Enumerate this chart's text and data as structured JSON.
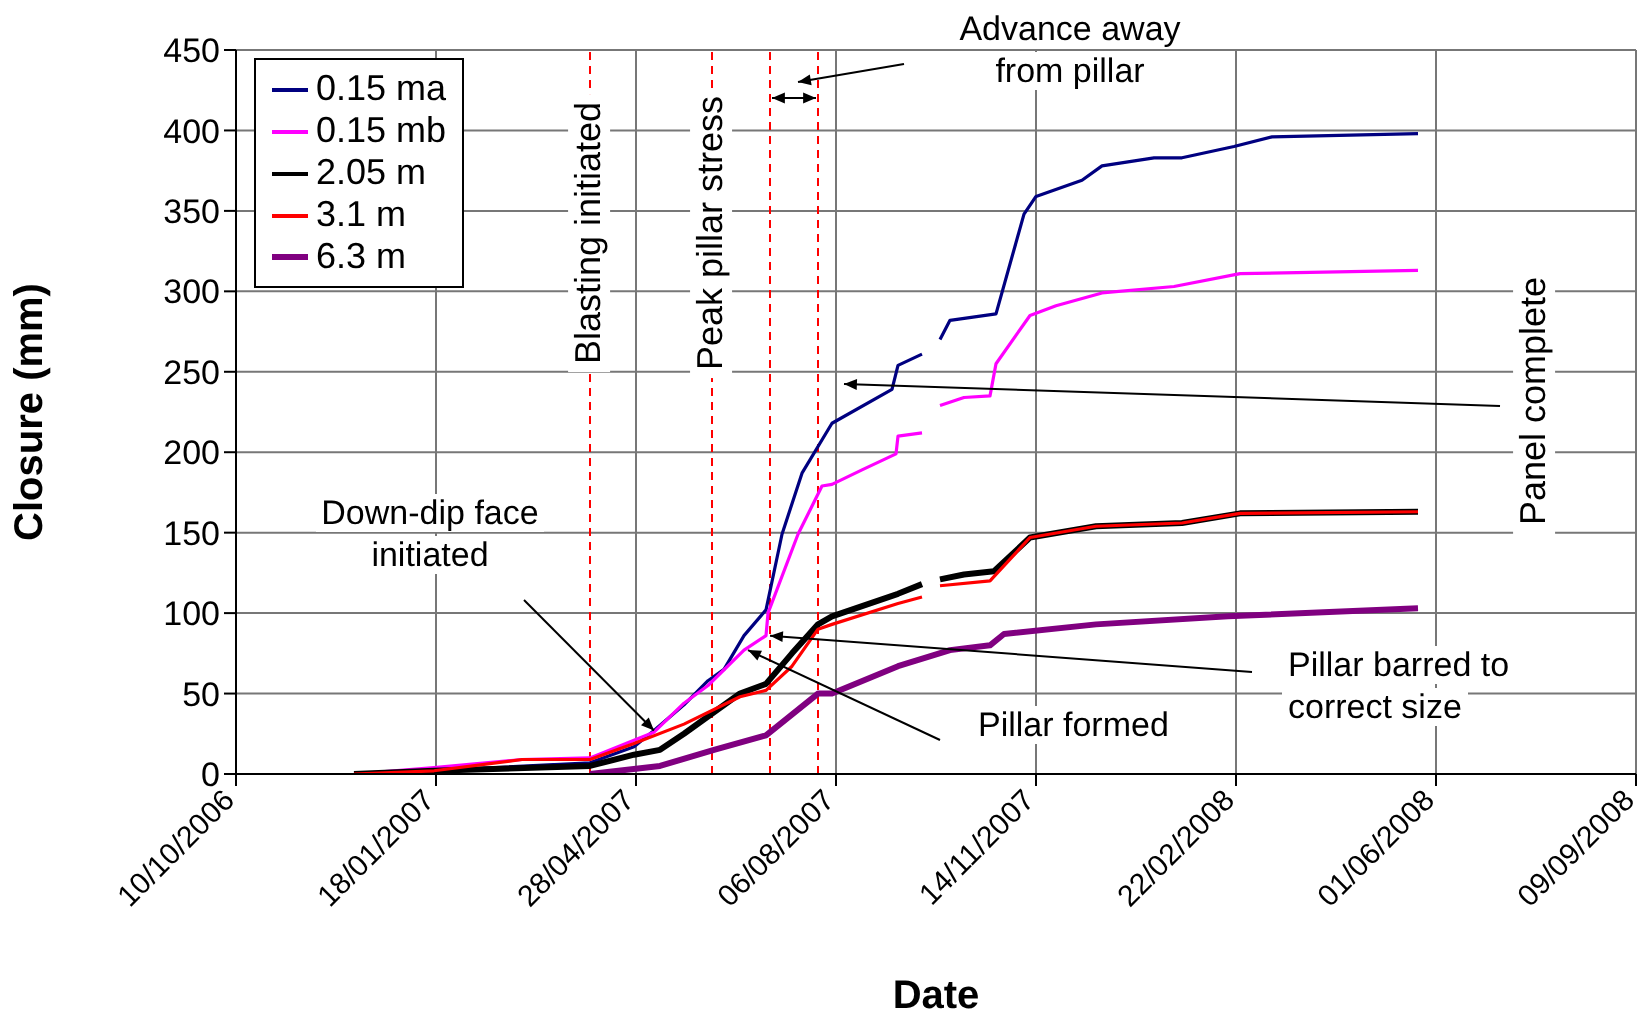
{
  "chart_data": {
    "type": "line",
    "xlabel": "Date",
    "ylabel": "Closure (mm)",
    "xlim": [
      "2006-10-10",
      "2008-09-09"
    ],
    "xticks": [
      {
        "value": "2006-10-10",
        "label": "10/10/2006"
      },
      {
        "value": "2007-01-18",
        "label": "18/01/2007"
      },
      {
        "value": "2007-04-28",
        "label": "28/04/2007"
      },
      {
        "value": "2007-08-06",
        "label": "06/08/2007"
      },
      {
        "value": "2007-11-14",
        "label": "14/11/2007"
      },
      {
        "value": "2008-02-22",
        "label": "22/02/2008"
      },
      {
        "value": "2008-06-01",
        "label": "01/06/2008"
      },
      {
        "value": "2008-09-09",
        "label": "09/09/2008"
      }
    ],
    "ylim": [
      0,
      450
    ],
    "yticks": [
      0,
      50,
      100,
      150,
      200,
      250,
      300,
      350,
      400,
      450
    ],
    "grid": true,
    "legend": "top left",
    "marker": "none",
    "line_style": "solid",
    "series": [
      {
        "name": "0.15 ma",
        "color": "#000080",
        "x": [
          "2006-12-08",
          "2007-01-17",
          "2007-04-05",
          "2007-04-27",
          "2007-05-07",
          "2007-05-22",
          "2007-06-03",
          "2007-06-11",
          "2007-06-21",
          "2007-07-02",
          "2007-07-10",
          "2007-07-20",
          "2007-08-04",
          "2007-09-03",
          "2007-09-06",
          "2007-09-18",
          "2007-09-22",
          "2007-09-27",
          "2007-10-02",
          "2007-10-25",
          "2007-11-08",
          "2007-11-14",
          "2007-12-07",
          "2007-12-17",
          "2008-01-12",
          "2008-01-26",
          "2008-02-21",
          "2008-03-11",
          "2008-05-23"
        ],
        "values": [
          0,
          2,
          7,
          17,
          27,
          43,
          58,
          65,
          86,
          102,
          149,
          187,
          218,
          239,
          254,
          261,
          null,
          270,
          282,
          286,
          348,
          359,
          369,
          378,
          383,
          383,
          390,
          396,
          398
        ]
      },
      {
        "name": "0.15 mb",
        "color": "#ff00ff",
        "x": [
          "2006-12-08",
          "2007-01-17",
          "2007-03-02",
          "2007-04-05",
          "2007-04-27",
          "2007-05-07",
          "2007-05-22",
          "2007-06-03",
          "2007-06-21",
          "2007-07-02",
          "2007-07-03",
          "2007-07-18",
          "2007-07-30",
          "2007-08-04",
          "2007-08-19",
          "2007-09-05",
          "2007-09-06",
          "2007-09-18",
          "2007-09-22",
          "2007-09-27",
          "2007-10-09",
          "2007-10-22",
          "2007-10-25",
          "2007-11-11",
          "2007-11-24",
          "2007-12-17",
          "2008-01-22",
          "2008-02-24",
          "2008-05-23"
        ],
        "values": [
          0,
          4,
          9,
          10,
          21,
          26,
          44,
          55,
          77,
          86,
          100,
          149,
          179,
          180,
          189,
          199,
          210,
          212,
          null,
          229,
          234,
          235,
          255,
          285,
          291,
          299,
          303,
          311,
          313
        ]
      },
      {
        "name": "2.05 m",
        "color": "#000000",
        "x": [
          "2006-12-08",
          "2007-01-17",
          "2007-04-05",
          "2007-04-27",
          "2007-05-10",
          "2007-05-22",
          "2007-06-19",
          "2007-07-02",
          "2007-07-15",
          "2007-07-28",
          "2007-08-04",
          "2007-09-06",
          "2007-09-18",
          "2007-09-22",
          "2007-09-27",
          "2007-10-09",
          "2007-10-24",
          "2007-11-11",
          "2007-12-14",
          "2008-01-26",
          "2008-02-24",
          "2008-05-23"
        ],
        "values": [
          0,
          2,
          5,
          12,
          15,
          25,
          50,
          56,
          75,
          93,
          98,
          112,
          118,
          null,
          121,
          124,
          126,
          147,
          154,
          156,
          162,
          163
        ]
      },
      {
        "name": "3.1 m",
        "color": "#ff0000",
        "x": [
          "2006-12-08",
          "2007-01-17",
          "2007-03-02",
          "2007-04-05",
          "2007-04-27",
          "2007-05-22",
          "2007-06-19",
          "2007-07-02",
          "2007-07-15",
          "2007-07-28",
          "2007-08-04",
          "2007-09-06",
          "2007-09-18",
          "2007-09-22",
          "2007-09-27",
          "2007-10-22",
          "2007-11-11",
          "2007-12-14",
          "2008-01-26",
          "2008-02-24",
          "2008-05-23"
        ],
        "values": [
          0,
          2,
          9,
          9,
          19,
          31,
          48,
          52,
          67,
          90,
          93,
          106,
          110,
          null,
          117,
          120,
          147,
          154,
          156,
          162,
          163
        ]
      },
      {
        "name": "6.3 m",
        "color": "#800080",
        "x": [
          "2007-04-05",
          "2007-05-10",
          "2007-06-06",
          "2007-07-02",
          "2007-07-28",
          "2007-08-04",
          "2007-09-06",
          "2007-10-02",
          "2007-10-22",
          "2007-10-29",
          "2007-12-14",
          "2008-02-18",
          "2008-05-23"
        ],
        "values": [
          0,
          5,
          15,
          24,
          50,
          50,
          67,
          77,
          80,
          87,
          93,
          98,
          103
        ]
      }
    ],
    "ref_lines": [
      {
        "axis": "x",
        "value": "2007-04-05",
        "label": "Blasting initiated",
        "color": "#ff0000",
        "line_style": "dashed"
      },
      {
        "axis": "x",
        "value": "2007-06-05",
        "label": "Peak pillar stress",
        "color": "#ff0000",
        "line_style": "dashed"
      },
      {
        "axis": "x",
        "value": "2007-07-04",
        "color": "#ff0000",
        "line_style": "dashed"
      },
      {
        "axis": "x",
        "value": "2007-07-28",
        "color": "#ff0000",
        "line_style": "dashed"
      }
    ],
    "annotations": [
      {
        "text": "Down-dip face initiated",
        "x": "2007-05-07",
        "y": 27
      },
      {
        "text": "Pillar formed",
        "x": "2007-06-23",
        "y": 77
      },
      {
        "text": "Pillar barred to correct size",
        "x": "2007-07-04",
        "y": 86
      },
      "Panel complete",
      "Advance away from pillar"
    ]
  }
}
